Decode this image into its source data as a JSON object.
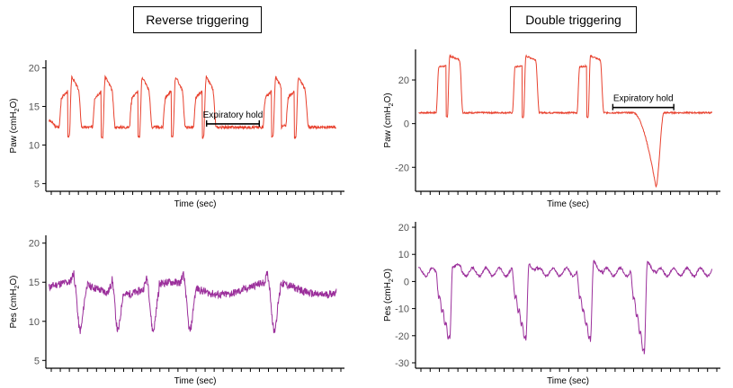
{
  "panel_titles": {
    "left": "Reverse triggering",
    "right": "Double triggering"
  },
  "colors": {
    "paw": "#e8412e",
    "pes": "#9b2f9b",
    "axis": "#000000",
    "tick_label": "#555555"
  },
  "chart_data": [
    {
      "id": "rt-paw",
      "type": "line",
      "title": "Reverse triggering",
      "xlabel": "Time (sec)",
      "ylabel_main": "Paw (cmH",
      "ylabel_sub": "2",
      "ylabel_end": "O)",
      "ylim": [
        4,
        21
      ],
      "yticks": [
        5,
        10,
        15,
        20
      ],
      "xlim": [
        0,
        34
      ],
      "xticks": 33,
      "series": [
        {
          "name": "Paw",
          "color": "#e8412e",
          "profile": "rt_paw",
          "breaths": [
            1.5,
            5.3,
            9.5,
            13.3,
            16.8,
            24.7,
            27.3
          ],
          "baseline": 12.3,
          "peak": 18.5
        }
      ],
      "annotations": [
        {
          "text": "Expiratory hold",
          "x_start": 18.3,
          "x_end": 24.3,
          "y": 13.9
        }
      ]
    },
    {
      "id": "dt-paw",
      "type": "line",
      "title": "Double triggering",
      "xlabel": "Time (sec)",
      "ylabel_main": "Paw (cmH",
      "ylabel_sub": "2",
      "ylabel_end": "O)",
      "ylim": [
        -31,
        34
      ],
      "yticks": [
        -20,
        0,
        20
      ],
      "xlim": [
        0,
        34
      ],
      "xticks": 33,
      "series": [
        {
          "name": "Paw",
          "color": "#e8412e",
          "profile": "dt_paw",
          "breaths": [
            2.3,
            10.8,
            18.0
          ],
          "baseline": 5.0,
          "peak": 28,
          "hold_min": -29
        }
      ],
      "annotations": [
        {
          "text": "Expiratory hold",
          "x_start": 22.0,
          "x_end": 28.8,
          "y": 11.5
        }
      ]
    },
    {
      "id": "rt-pes",
      "type": "line",
      "xlabel": "Time (sec)",
      "ylabel_main": "Pes (cmH",
      "ylabel_sub": "2",
      "ylabel_end": "O)",
      "ylim": [
        4,
        21
      ],
      "yticks": [
        5,
        10,
        15,
        20
      ],
      "xlim": [
        0,
        34
      ],
      "xticks": 33,
      "series": [
        {
          "name": "Pes",
          "color": "#9b2f9b",
          "profile": "rt_pes",
          "breaths": [
            3.2,
            7.5,
            11.5,
            15.7,
            25.3
          ],
          "baseline": 14.2,
          "trough": 8.8
        }
      ]
    },
    {
      "id": "dt-pes",
      "type": "line",
      "xlabel": "Time (sec)",
      "ylabel_main": "Pes (cmH",
      "ylabel_sub": "2",
      "ylabel_end": "O)",
      "ylim": [
        -32,
        22
      ],
      "yticks": [
        -30,
        -20,
        -10,
        0,
        10,
        20
      ],
      "xlim": [
        0,
        34
      ],
      "xticks": 33,
      "series": [
        {
          "name": "Pes",
          "color": "#9b2f9b",
          "profile": "dt_pes",
          "breaths": [
            2.3,
            10.8,
            18.0,
            24.0
          ],
          "baseline": 3.5,
          "trough": -22
        }
      ]
    }
  ]
}
